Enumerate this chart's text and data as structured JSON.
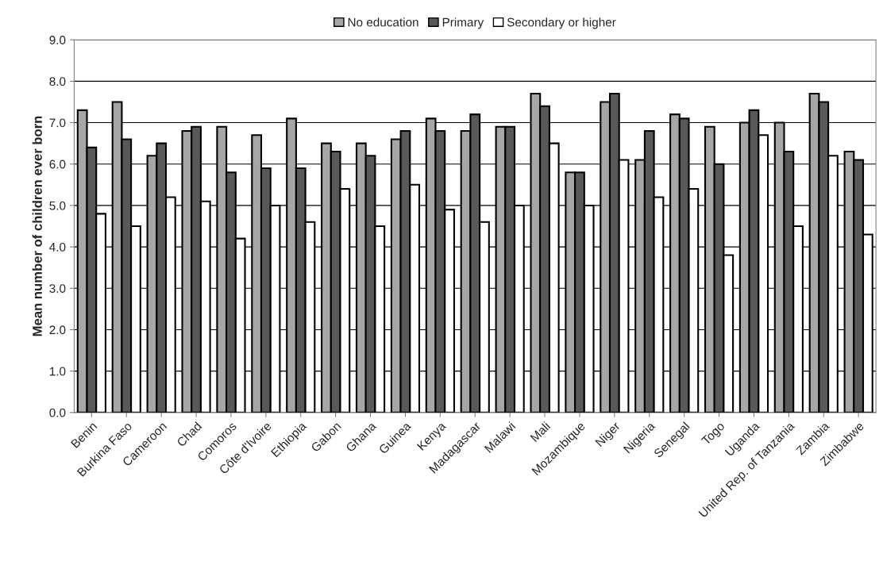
{
  "chart_data": {
    "type": "bar",
    "ylabel": "Mean number of children ever born",
    "categories": [
      "Benin",
      "Burkina Faso",
      "Cameroon",
      "Chad",
      "Comoros",
      "Côte d'Ivoire",
      "Ethiopia",
      "Gabon",
      "Ghana",
      "Guinea",
      "Kenya",
      "Madagascar",
      "Malawi",
      "Mali",
      "Mozambique",
      "Niger",
      "Nigeria",
      "Senegal",
      "Togo",
      "Uganda",
      "United Rep. of Tanzania",
      "Zambia",
      "Zimbabwe"
    ],
    "series": [
      {
        "name": "No education",
        "color": "#a6a6a6",
        "values": [
          7.3,
          7.5,
          6.2,
          6.8,
          6.9,
          6.7,
          7.1,
          6.5,
          6.5,
          6.6,
          7.1,
          6.8,
          6.9,
          7.7,
          5.8,
          7.5,
          6.1,
          7.2,
          6.9,
          7.0,
          7.0,
          7.7,
          6.3
        ]
      },
      {
        "name": "Primary",
        "color": "#595959",
        "values": [
          6.4,
          6.6,
          6.5,
          6.9,
          5.8,
          5.9,
          5.9,
          6.3,
          6.2,
          6.8,
          6.8,
          7.2,
          6.9,
          7.4,
          5.8,
          7.7,
          6.8,
          7.1,
          6.0,
          7.3,
          6.3,
          7.5,
          6.1
        ]
      },
      {
        "name": "Secondary or higher",
        "color": "#ffffff",
        "values": [
          4.8,
          4.5,
          5.2,
          5.1,
          4.2,
          5.0,
          4.6,
          5.4,
          4.5,
          5.5,
          4.9,
          4.6,
          5.0,
          6.5,
          5.0,
          6.1,
          5.2,
          5.4,
          3.8,
          6.7,
          4.5,
          6.2,
          4.3
        ]
      }
    ],
    "ylim": [
      0,
      9
    ],
    "yticks": [
      {
        "value": 0,
        "label": "0.0"
      },
      {
        "value": 1,
        "label": "1.0"
      },
      {
        "value": 2,
        "label": "2.0"
      },
      {
        "value": 3,
        "label": "3.0"
      },
      {
        "value": 4,
        "label": "4.0"
      },
      {
        "value": 5,
        "label": "5.0"
      },
      {
        "value": 6,
        "label": "6.0"
      },
      {
        "value": 7,
        "label": "7.0"
      },
      {
        "value": 8,
        "label": "8.0"
      },
      {
        "value": 9,
        "label": "9.0"
      }
    ],
    "grid": "y",
    "legend": "top"
  }
}
